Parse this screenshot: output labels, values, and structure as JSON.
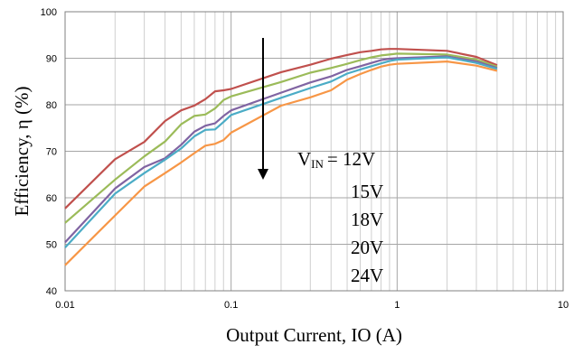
{
  "chart_data": {
    "type": "line",
    "title": "",
    "xlabel": "Output Current, IO (A)",
    "ylabel": "Efficiency, η (%)",
    "x_scale": "log",
    "xlim": [
      0.01,
      10
    ],
    "ylim": [
      40,
      100
    ],
    "x_ticks": [
      {
        "value": 0.01,
        "label": "0.01"
      },
      {
        "value": 0.1,
        "label": "0.1"
      },
      {
        "value": 1,
        "label": "1"
      },
      {
        "value": 10,
        "label": "10"
      }
    ],
    "y_ticks": [
      {
        "value": 40,
        "label": "40"
      },
      {
        "value": 50,
        "label": "50"
      },
      {
        "value": 60,
        "label": "60"
      },
      {
        "value": 70,
        "label": "70"
      },
      {
        "value": 80,
        "label": "80"
      },
      {
        "value": 90,
        "label": "90"
      },
      {
        "value": 100,
        "label": "100"
      }
    ],
    "grid": true,
    "x": [
      0.01,
      0.02,
      0.03,
      0.04,
      0.05,
      0.06,
      0.07,
      0.08,
      0.09,
      0.1,
      0.2,
      0.3,
      0.4,
      0.5,
      0.6,
      0.7,
      0.8,
      0.9,
      1,
      2,
      3,
      4
    ],
    "series": [
      {
        "name": "12V",
        "color": "#c0504d",
        "values": [
          57.7,
          68.3,
          72.0,
          76.5,
          78.8,
          79.8,
          81.2,
          82.9,
          83.1,
          83.4,
          87.0,
          88.6,
          89.9,
          90.7,
          91.3,
          91.6,
          91.9,
          92.0,
          92.0,
          91.6,
          90.3,
          88.5
        ]
      },
      {
        "name": "15V",
        "color": "#9bbb59",
        "values": [
          54.6,
          63.9,
          68.9,
          72.1,
          75.8,
          77.6,
          77.9,
          79.2,
          81.0,
          81.8,
          84.9,
          86.9,
          87.9,
          88.8,
          89.6,
          90.2,
          90.6,
          90.8,
          91.0,
          90.8,
          89.7,
          88.2
        ]
      },
      {
        "name": "18V",
        "color": "#8064a2",
        "values": [
          50.4,
          62.0,
          66.6,
          68.5,
          71.4,
          74.2,
          75.5,
          76.0,
          77.6,
          78.8,
          82.6,
          84.8,
          86.1,
          87.5,
          88.3,
          89.0,
          89.6,
          89.9,
          90.0,
          90.4,
          89.3,
          87.9
        ]
      },
      {
        "name": "20V",
        "color": "#4bacc6",
        "values": [
          49.3,
          60.9,
          65.3,
          68.2,
          70.6,
          73.2,
          74.6,
          74.7,
          76.3,
          77.8,
          81.5,
          83.6,
          85.0,
          86.7,
          87.6,
          88.3,
          88.9,
          89.4,
          89.7,
          90.2,
          89.0,
          87.7
        ]
      },
      {
        "name": "24V",
        "color": "#f79646",
        "values": [
          45.5,
          56.2,
          62.4,
          65.3,
          67.6,
          69.6,
          71.2,
          71.6,
          72.4,
          74.0,
          79.8,
          81.6,
          83.1,
          85.4,
          86.6,
          87.5,
          88.2,
          88.6,
          88.8,
          89.3,
          88.4,
          87.3
        ]
      }
    ],
    "annotation": {
      "prefix": "V",
      "subscript": "IN",
      "labels": [
        "= 12V",
        "15V",
        "18V",
        "20V",
        "24V"
      ],
      "arrow": "down"
    }
  }
}
